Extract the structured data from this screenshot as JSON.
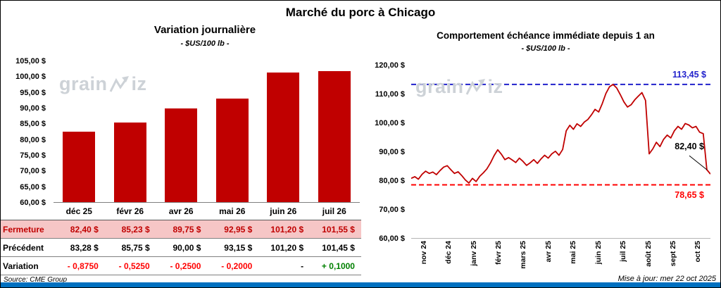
{
  "header": {
    "title": "Marché du porc à Chicago"
  },
  "watermark": {
    "left": "grain",
    "right": "iz"
  },
  "chart_data": [
    {
      "type": "bar",
      "title": "Variation journalière",
      "subtitle": "- $US/100 lb -",
      "categories": [
        "déc 25",
        "févr 26",
        "avr 26",
        "mai 26",
        "juin 26",
        "juil 26"
      ],
      "values": [
        82.4,
        85.23,
        89.75,
        92.95,
        101.2,
        101.55
      ],
      "ylim": [
        60,
        105
      ],
      "y_ticks": [
        "105,00 $",
        "100,00 $",
        "95,00 $",
        "90,00 $",
        "85,00 $",
        "80,00 $",
        "75,00 $",
        "70,00 $",
        "65,00 $",
        "60,00 $"
      ],
      "legend": "none",
      "grid": "off"
    },
    {
      "type": "line",
      "title": "Comportement échéance immédiate depuis 1 an",
      "subtitle": "- $US/100 lb -",
      "x_labels": [
        "nov 24",
        "déc 24",
        "janv 25",
        "févr 25",
        "mars 25",
        "avr 25",
        "mai 25",
        "juin 25",
        "juil 25",
        "août 25",
        "sept 25",
        "oct 25"
      ],
      "ylim": [
        60,
        120
      ],
      "y_ticks": [
        "120,00 $",
        "110,00 $",
        "100,00 $",
        "90,00 $",
        "80,00 $",
        "70,00 $",
        "60,00 $"
      ],
      "high": {
        "value": 113.45,
        "label": "113,45 $"
      },
      "low": {
        "value": 78.65,
        "label": "78,65 $"
      },
      "last": {
        "value": 82.4,
        "label": "82,40 $"
      },
      "values": [
        80.9,
        81.5,
        80.6,
        82.3,
        83.4,
        82.6,
        83.1,
        82.2,
        83.6,
        84.8,
        85.3,
        83.9,
        82.6,
        83.2,
        81.9,
        80.4,
        79.3,
        80.9,
        79.8,
        81.6,
        82.8,
        84.2,
        86.3,
        88.8,
        90.8,
        89.3,
        87.4,
        88.1,
        87.3,
        86.4,
        87.9,
        86.8,
        85.4,
        86.3,
        87.4,
        86.1,
        87.6,
        88.9,
        87.9,
        89.4,
        90.3,
        88.9,
        90.9,
        97.4,
        99.3,
        97.9,
        99.8,
        98.9,
        100.4,
        101.3,
        102.9,
        104.8,
        103.9,
        106.8,
        110.3,
        112.6,
        113.45,
        112.2,
        109.9,
        107.4,
        105.6,
        106.4,
        108.1,
        109.4,
        110.6,
        107.9,
        89.4,
        91.1,
        93.4,
        91.9,
        94.4,
        95.9,
        94.9,
        97.4,
        98.9,
        97.9,
        99.9,
        99.4,
        98.4,
        98.9,
        96.9,
        96.4,
        83.9,
        82.4
      ],
      "legend": "none",
      "grid": "off"
    }
  ],
  "table": {
    "rows": [
      {
        "label": "Fermeture",
        "style": "highlight",
        "values": [
          "82,40 $",
          "85,23 $",
          "89,75 $",
          "92,95 $",
          "101,20 $",
          "101,55 $"
        ]
      },
      {
        "label": "Précédent",
        "style": "normal",
        "values": [
          "83,28 $",
          "85,75 $",
          "90,00 $",
          "93,15 $",
          "101,20 $",
          "101,45 $"
        ]
      },
      {
        "label": "Variation",
        "style": "variation",
        "values": [
          "- 0,8750",
          "- 0,5250",
          "- 0,2500",
          "- 0,2000",
          "-",
          "+ 0,1000"
        ],
        "styles": [
          "negative",
          "negative",
          "negative",
          "negative",
          "none",
          "positive"
        ]
      }
    ]
  },
  "footer": {
    "source": "Source: CME Group",
    "updated": "Mise à jour: mer 22 oct 2025"
  },
  "colors": {
    "bar": "#C00000",
    "series": "#C00000",
    "high_line": "#2222CC",
    "low_line": "#FF0000",
    "table_highlight_bg": "#F6C6C6",
    "table_highlight_text": "#C00000",
    "negative": "#FF0000",
    "positive": "#008000",
    "none": "#000000",
    "footer_bar": "#0070C0",
    "watermark": "#CDD2D7"
  }
}
